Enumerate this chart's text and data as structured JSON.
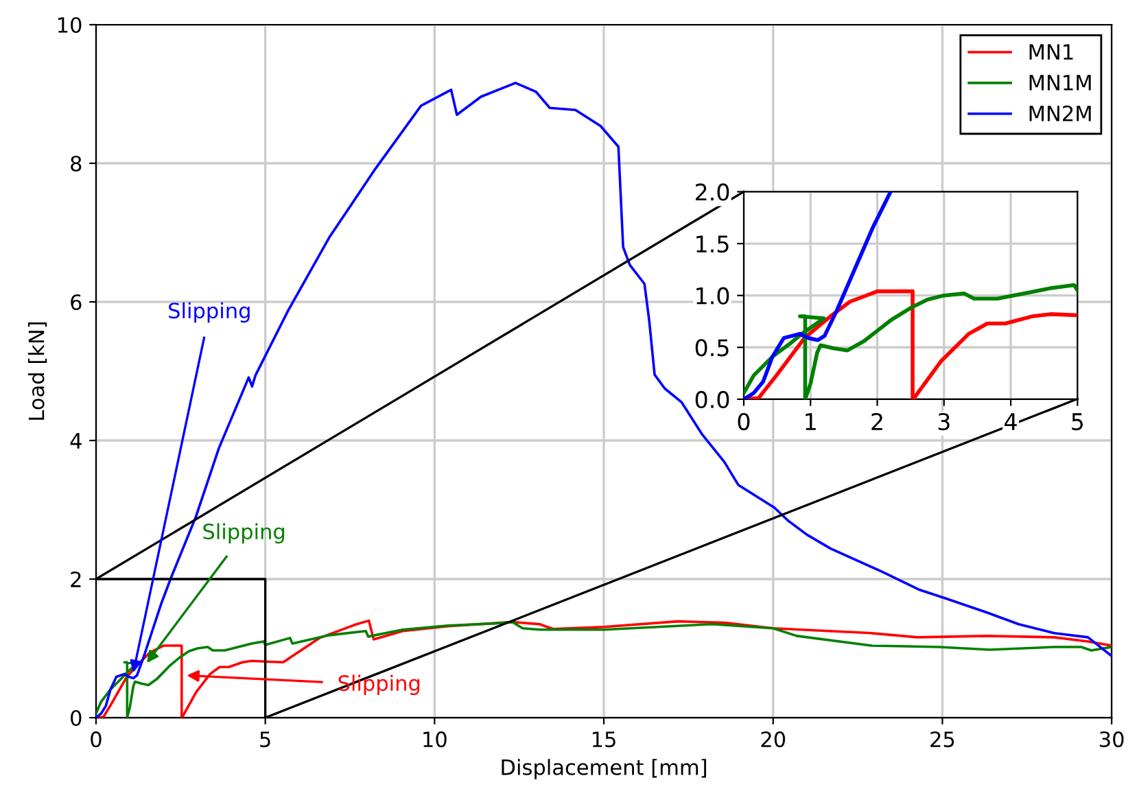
{
  "chart_data": [
    {
      "type": "line",
      "xlabel": "Displacement [mm]",
      "ylabel": "Load [kN]",
      "xlim": [
        0,
        30
      ],
      "ylim": [
        0,
        10
      ],
      "xticks": [
        0,
        5,
        10,
        15,
        20,
        25,
        30
      ],
      "yticks": [
        0,
        2,
        4,
        6,
        8,
        10
      ],
      "grid": true,
      "legend": "top right",
      "marker": "none",
      "line_style": "solid",
      "series": [
        {
          "name": "MN1",
          "color": "#ff0000",
          "x": [
            0,
            0.22,
            0.49,
            0.91,
            1.32,
            1.59,
            2.0,
            2.53,
            2.53,
            2.55,
            2.96,
            3.37,
            3.65,
            3.92,
            4.33,
            4.6,
            5,
            5.53,
            5.8,
            6.6,
            7.7,
            8.06,
            8.2,
            9.06,
            10.4,
            12.3,
            13.1,
            13.5,
            15,
            17.2,
            18.56,
            20,
            22.9,
            24.27,
            26.3,
            28.3,
            29.3,
            30
          ],
          "values": [
            0,
            0.01,
            0.23,
            0.59,
            0.81,
            0.94,
            1.04,
            1.04,
            0,
            0.01,
            0.37,
            0.63,
            0.73,
            0.73,
            0.8,
            0.82,
            0.81,
            0.8,
            0.89,
            1.15,
            1.35,
            1.4,
            1.13,
            1.25,
            1.32,
            1.38,
            1.35,
            1.28,
            1.31,
            1.39,
            1.37,
            1.29,
            1.22,
            1.16,
            1.18,
            1.16,
            1.1,
            1.04
          ]
        },
        {
          "name": "MN1M",
          "color": "#008000",
          "x": [
            0,
            0.15,
            0.43,
            0.7,
            0.87,
            1.2,
            0.84,
            0.92,
            0.92,
            1.0,
            1.1,
            1.15,
            1.35,
            1.55,
            1.8,
            2.0,
            2.2,
            2.5,
            2.75,
            3.0,
            3.3,
            3.45,
            3.8,
            4.2,
            4.6,
            4.95,
            5,
            5.73,
            5.8,
            6.89,
            7.97,
            8.04,
            9.06,
            10.4,
            11.8,
            12.3,
            12.6,
            13.1,
            15,
            18.2,
            20,
            20.7,
            22.9,
            24.9,
            26.4,
            28.3,
            29.1,
            29.4,
            30
          ],
          "values": [
            0.06,
            0.23,
            0.41,
            0.54,
            0.63,
            0.78,
            0.8,
            0.8,
            0,
            0.15,
            0.45,
            0.52,
            0.49,
            0.47,
            0.56,
            0.66,
            0.76,
            0.88,
            0.96,
            1.0,
            1.02,
            0.97,
            0.97,
            1.02,
            1.07,
            1.1,
            1.05,
            1.15,
            1.07,
            1.19,
            1.25,
            1.17,
            1.27,
            1.33,
            1.36,
            1.38,
            1.29,
            1.27,
            1.27,
            1.35,
            1.29,
            1.18,
            1.04,
            1.02,
            0.98,
            1.02,
            1.02,
            0.97,
            1.02
          ]
        },
        {
          "name": "MN2M",
          "color": "#0000ff",
          "x": [
            0,
            0.15,
            0.29,
            0.43,
            0.6,
            0.84,
            0.97,
            1.11,
            1.21,
            1.39,
            1.66,
            1.93,
            2.2,
            2.95,
            3.63,
            4.51,
            4.61,
            4.71,
            5.67,
            6.89,
            8.25,
            9.6,
            10.49,
            10.66,
            11.37,
            12.39,
            13.0,
            13.4,
            14.16,
            14.9,
            15.43,
            15.57,
            15.77,
            16.2,
            16.34,
            16.5,
            16.8,
            17.3,
            17.9,
            18.56,
            18.97,
            20.04,
            20.45,
            21.0,
            21.7,
            23.2,
            24.3,
            25.1,
            26.3,
            27.25,
            28.3,
            29.3,
            30
          ],
          "values": [
            0,
            0.06,
            0.17,
            0.41,
            0.59,
            0.63,
            0.59,
            0.57,
            0.61,
            0.85,
            1.25,
            1.65,
            2.0,
            2.9,
            3.89,
            4.91,
            4.78,
            4.94,
            5.87,
            6.93,
            7.92,
            8.83,
            9.06,
            8.7,
            8.96,
            9.16,
            9.03,
            8.8,
            8.77,
            8.54,
            8.24,
            6.79,
            6.53,
            6.26,
            5.73,
            4.95,
            4.75,
            4.55,
            4.09,
            3.69,
            3.36,
            3.03,
            2.84,
            2.64,
            2.44,
            2.11,
            1.85,
            1.72,
            1.52,
            1.35,
            1.22,
            1.16,
            0.89
          ]
        },
        {
          "color": "#000000",
          "x": [
            5,
            5,
            0
          ],
          "values": [
            0,
            2,
            2
          ]
        },
        {
          "color": "#000000",
          "x": [
            0,
            19.13
          ],
          "values": [
            2,
            7.59
          ]
        },
        {
          "color": "#000000",
          "x": [
            5,
            28.99
          ],
          "values": [
            0,
            4.6
          ]
        }
      ],
      "annotations": [
        {
          "text": "Slipping",
          "x": 2.68,
          "y": 0.61
        },
        {
          "text": "Slipping",
          "x": 1.5,
          "y": 0.79
        },
        {
          "text": "Slipping",
          "x": 1.1,
          "y": 0.65
        }
      ]
    },
    {
      "type": "line",
      "xlim": [
        0,
        5
      ],
      "ylim": [
        0,
        2
      ],
      "xticks": [
        0,
        1,
        2,
        3,
        4,
        5
      ],
      "yticks": [
        {
          "value": 0,
          "label": "0.0"
        },
        {
          "value": 0.5,
          "label": "0.5"
        },
        {
          "value": 1,
          "label": "1.0"
        },
        {
          "value": 1.5,
          "label": "1.5"
        },
        {
          "value": 2,
          "label": "2.0"
        }
      ],
      "grid": true,
      "marker": "none",
      "line_style": "solid",
      "series": [
        {
          "color": "#ff0000",
          "x": [
            0,
            0.22,
            0.49,
            0.91,
            1.32,
            1.59,
            2.0,
            2.53,
            2.53,
            2.55,
            2.96,
            3.37,
            3.65,
            3.92,
            4.33,
            4.6,
            5
          ],
          "values": [
            0,
            0.01,
            0.23,
            0.59,
            0.81,
            0.94,
            1.04,
            1.04,
            0,
            0.01,
            0.37,
            0.63,
            0.73,
            0.73,
            0.8,
            0.82,
            0.81
          ]
        },
        {
          "color": "#008000",
          "x": [
            0,
            0.15,
            0.43,
            0.7,
            0.87,
            1.2,
            0.84,
            0.92,
            0.92,
            1.0,
            1.1,
            1.15,
            1.35,
            1.55,
            1.8,
            2.0,
            2.2,
            2.5,
            2.75,
            3.0,
            3.3,
            3.45,
            3.8,
            4.2,
            4.6,
            4.95,
            5
          ],
          "values": [
            0.06,
            0.23,
            0.41,
            0.54,
            0.63,
            0.78,
            0.8,
            0.8,
            0,
            0.15,
            0.45,
            0.52,
            0.49,
            0.47,
            0.56,
            0.66,
            0.76,
            0.88,
            0.96,
            1.0,
            1.02,
            0.97,
            0.97,
            1.02,
            1.07,
            1.1,
            1.05
          ]
        },
        {
          "color": "#0000ff",
          "x": [
            0,
            0.15,
            0.29,
            0.43,
            0.6,
            0.84,
            0.97,
            1.11,
            1.21,
            1.39,
            1.66,
            1.93,
            2.2
          ],
          "values": [
            0,
            0.06,
            0.17,
            0.41,
            0.59,
            0.63,
            0.59,
            0.57,
            0.61,
            0.85,
            1.25,
            1.65,
            2.0
          ]
        }
      ]
    }
  ]
}
